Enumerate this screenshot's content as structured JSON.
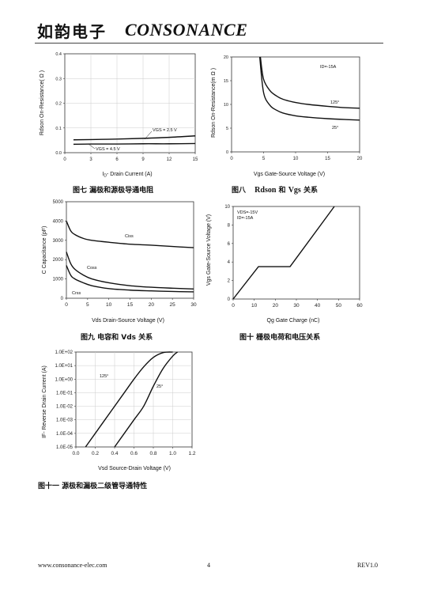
{
  "header": {
    "brand_cn": "如韵电子",
    "brand_en": "CONSONANCE"
  },
  "footer": {
    "website": "www.consonance-elec.com",
    "page": "4",
    "revision": "REV1.0"
  },
  "chart_data": [
    {
      "id": "fig7",
      "type": "line",
      "caption": "图七   漏极和源极导通电阻",
      "xlabel": "I<sub>D</sub>- Drain Current (A)",
      "xlabel_text": "ID- Drain Current (A)",
      "ylabel": "Rdson On-Resistance( Ω )",
      "xlim": [
        0,
        15
      ],
      "ylim": [
        0,
        0.4
      ],
      "xticks": [
        "0",
        "3",
        "6",
        "9",
        "12",
        "15"
      ],
      "yticks": [
        "0.0",
        "0.1",
        "0.2",
        "0.3",
        "0.4"
      ],
      "grid": true,
      "series": [
        {
          "name": "VGS = 2.5 V",
          "x": [
            1,
            3,
            6,
            9,
            12,
            15
          ],
          "y": [
            0.052,
            0.053,
            0.055,
            0.058,
            0.062,
            0.068
          ]
        },
        {
          "name": "VGS = 4.5 V",
          "x": [
            1,
            3,
            6,
            9,
            12,
            15
          ],
          "y": [
            0.034,
            0.035,
            0.035,
            0.036,
            0.036,
            0.037
          ]
        }
      ]
    },
    {
      "id": "fig8",
      "type": "line",
      "caption_prefix": "图八",
      "caption_mid": "Rdson",
      "caption_and": "和",
      "caption_vgs": "Vgs",
      "caption_suffix": "关系",
      "xlabel": "Vgs Gate-Source Voltage (V)",
      "ylabel": "Rdson On-Resistance(m Ω )",
      "annotation": "ID=-15A",
      "xlim": [
        0,
        20
      ],
      "ylim": [
        0,
        20
      ],
      "xticks": [
        "0",
        "5",
        "10",
        "15",
        "20"
      ],
      "yticks": [
        "0",
        "5",
        "10",
        "15",
        "20"
      ],
      "grid": false,
      "series": [
        {
          "name": "125°",
          "x": [
            4.5,
            5,
            6,
            7,
            8,
            10,
            12,
            15,
            18,
            20
          ],
          "y": [
            20,
            15.3,
            12.9,
            11.8,
            11.1,
            10.4,
            10.0,
            9.6,
            9.3,
            9.2
          ]
        },
        {
          "name": "25°",
          "x": [
            4.4,
            5,
            6,
            7,
            8,
            10,
            12,
            15,
            18,
            20
          ],
          "y": [
            20,
            12.5,
            9.8,
            8.8,
            8.2,
            7.6,
            7.3,
            7.0,
            6.8,
            6.7
          ]
        }
      ]
    },
    {
      "id": "fig9",
      "type": "line",
      "caption": "图九  电容和 Vds 关系",
      "xlabel": "Vds Drain-Source Voltage (V)",
      "ylabel": "C Capacitance (pF)",
      "xlim": [
        0,
        30
      ],
      "ylim": [
        0,
        5000
      ],
      "xticks": [
        "0",
        "5",
        "10",
        "15",
        "20",
        "25",
        "30"
      ],
      "yticks": [
        "0",
        "1000",
        "2000",
        "3000",
        "4000",
        "5000"
      ],
      "grid": false,
      "series": [
        {
          "name": "Ciss",
          "x": [
            0,
            1,
            2,
            4,
            6,
            10,
            15,
            20,
            25,
            30
          ],
          "y": [
            4000,
            3500,
            3300,
            3100,
            3000,
            2900,
            2800,
            2750,
            2680,
            2620
          ]
        },
        {
          "name": "Coss",
          "x": [
            0,
            1,
            2,
            4,
            6,
            10,
            15,
            20,
            25,
            30
          ],
          "y": [
            2400,
            1800,
            1500,
            1200,
            1000,
            800,
            650,
            570,
            520,
            480
          ]
        },
        {
          "name": "Crss",
          "x": [
            0,
            1,
            2,
            4,
            6,
            10,
            15,
            20,
            25,
            30
          ],
          "y": [
            1700,
            1200,
            1000,
            800,
            650,
            500,
            420,
            380,
            350,
            330
          ]
        }
      ]
    },
    {
      "id": "fig10",
      "type": "line",
      "caption": "图十  栅极电荷和电压关系",
      "xlabel": "Qg Gate Charge (nC)",
      "ylabel": "Vgs Gate-Source Voltage (V)",
      "annotations": [
        "VDS=-15V",
        "ID=-15A"
      ],
      "xlim": [
        0,
        60
      ],
      "ylim": [
        0,
        10
      ],
      "xticks": [
        "0",
        "10",
        "20",
        "30",
        "40",
        "50",
        "60"
      ],
      "yticks": [
        "0",
        "2",
        "4",
        "6",
        "8",
        "10"
      ],
      "grid": false,
      "series": [
        {
          "name": "",
          "x": [
            0,
            12,
            27,
            48
          ],
          "y": [
            0,
            3.5,
            3.5,
            10
          ]
        }
      ]
    },
    {
      "id": "fig11",
      "type": "line",
      "caption": "图十一   源极和漏极二级管导通特性",
      "xlabel": "Vsd Source-Drain Voltage (V)",
      "ylabel": "IF- Reverse Drain Current (A)",
      "yscale": "log",
      "xlim": [
        0,
        1.2
      ],
      "ylim": [
        1e-05,
        100
      ],
      "xticks": [
        "0.0",
        "0.2",
        "0.4",
        "0.6",
        "0.8",
        "1.0",
        "1.2"
      ],
      "yticks": [
        "1.0E-05",
        "1.0E-04",
        "1.0E-03",
        "1.0E-02",
        "1.0E-01",
        "1.0E+00",
        "1.0E+01",
        "1.0E+02"
      ],
      "grid": true,
      "series": [
        {
          "name": "125°",
          "x": [
            0.1,
            0.3,
            0.5,
            0.6,
            0.7,
            0.8,
            0.9,
            1.0
          ],
          "y": [
            1e-05,
            0.001,
            0.1,
            1,
            8,
            40,
            90,
            100
          ]
        },
        {
          "name": "25°",
          "x": [
            0.4,
            0.6,
            0.7,
            0.8,
            0.9,
            1.0,
            1.05
          ],
          "y": [
            1e-05,
            0.001,
            0.01,
            0.3,
            6,
            50,
            100
          ]
        }
      ]
    }
  ]
}
